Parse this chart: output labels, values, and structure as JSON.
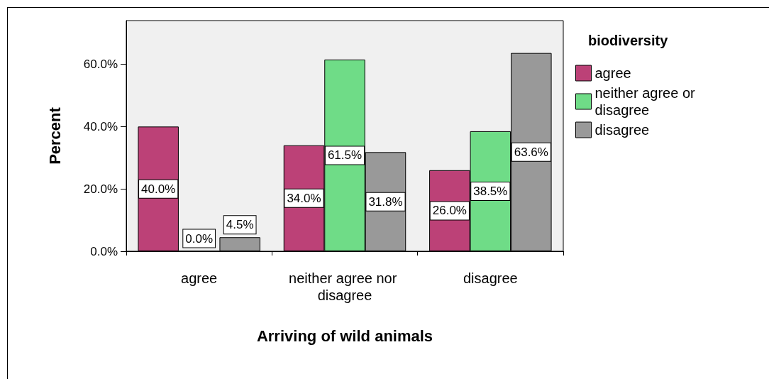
{
  "chart_data": {
    "type": "bar",
    "xlabel": "Arriving of wild animals",
    "ylabel": "Percent",
    "legend_title": "biodiversity",
    "categories": [
      "agree",
      "neither agree nor disagree",
      "disagree"
    ],
    "series": [
      {
        "name": "agree",
        "color": "#bc4177",
        "values": [
          40.0,
          34.0,
          26.0
        ],
        "value_labels": [
          "40.0%",
          "34.0%",
          "26.0%"
        ]
      },
      {
        "name": "neither agree or disagree",
        "color": "#6fdc87",
        "values": [
          0.0,
          61.5,
          38.5
        ],
        "value_labels": [
          "0.0%",
          "61.5%",
          "38.5%"
        ]
      },
      {
        "name": "disagree",
        "color": "#999999",
        "values": [
          4.5,
          31.8,
          63.6
        ],
        "value_labels": [
          "4.5%",
          "31.8%",
          "63.6%"
        ]
      }
    ],
    "ylim": [
      0,
      74
    ],
    "yticks": [
      {
        "value": 0,
        "label": "0.0%"
      },
      {
        "value": 20,
        "label": "20.0%"
      },
      {
        "value": 40,
        "label": "40.0%"
      },
      {
        "value": 60,
        "label": "60.0%"
      }
    ],
    "grid": false,
    "legend": "right"
  }
}
